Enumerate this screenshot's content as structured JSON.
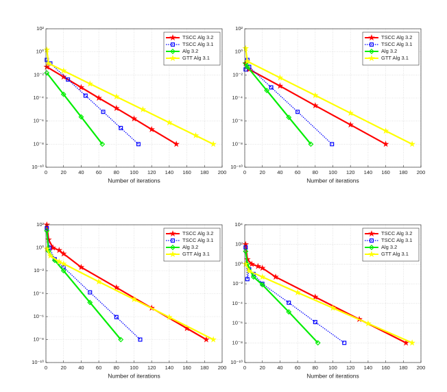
{
  "chart_data": [
    {
      "type": "line",
      "xlabel": "Number of iterations",
      "log_y": true,
      "grid": true,
      "legend": "upper right",
      "xlim": [
        0,
        200
      ],
      "xticks": [
        0,
        20,
        40,
        60,
        80,
        100,
        120,
        140,
        160,
        180,
        200
      ],
      "ylim": [
        1e-10,
        100
      ],
      "yticks": [
        {
          "value": 1e-10,
          "label": "10⁻¹⁰"
        },
        {
          "value": 1e-08,
          "label": "10⁻⁸"
        },
        {
          "value": 1e-06,
          "label": "10⁻⁶"
        },
        {
          "value": 0.0001,
          "label": "10⁻⁴"
        },
        {
          "value": 0.01,
          "label": "10⁻²"
        },
        {
          "value": 1,
          "label": "10⁰"
        },
        {
          "value": 100,
          "label": "10²"
        }
      ],
      "series": [
        {
          "name": "TSCC Alg 3.2",
          "color": "#ff0000",
          "marker": "star",
          "linestyle": "solid",
          "x": [
            1,
            20,
            40,
            60,
            80,
            100,
            120,
            148
          ],
          "values": [
            0.05,
            0.0068,
            0.00083,
            0.0001,
            1.3e-05,
            1.6e-06,
            1.9e-07,
            1e-08
          ]
        },
        {
          "name": "TSCC Alg 3.1",
          "color": "#0000ff",
          "marker": "square",
          "linestyle": "dotted",
          "x": [
            1,
            5,
            25,
            45,
            65,
            85,
            105
          ],
          "values": [
            0.2,
            0.1,
            0.004,
            0.00016,
            6.3e-06,
            2.5e-07,
            1e-08
          ]
        },
        {
          "name": "Alg 3.2",
          "color": "#00ee00",
          "marker": "diamond",
          "linestyle": "solid",
          "x": [
            1,
            20,
            40,
            64
          ],
          "values": [
            0.015,
            0.00021,
            2.3e-06,
            1e-08
          ]
        },
        {
          "name": "GTT Alg 3.1",
          "color": "#ffff00",
          "marker": "star",
          "linestyle": "solid",
          "x": [
            1,
            3,
            20,
            50,
            80,
            110,
            140,
            170,
            190
          ],
          "values": [
            1.5,
            0.1,
            0.023,
            0.0017,
            0.00013,
            1e-05,
            7.4e-07,
            5.6e-08,
            1e-08
          ]
        }
      ]
    },
    {
      "type": "line",
      "xlabel": "Number of iterations",
      "log_y": true,
      "grid": true,
      "legend": "upper right",
      "xlim": [
        0,
        200
      ],
      "xticks": [
        0,
        20,
        40,
        60,
        80,
        100,
        120,
        140,
        160,
        180,
        200
      ],
      "ylim": [
        1e-10,
        100
      ],
      "yticks": [
        {
          "value": 1e-10,
          "label": "10⁻¹⁰"
        },
        {
          "value": 1e-08,
          "label": "10⁻⁸"
        },
        {
          "value": 1e-06,
          "label": "10⁻⁶"
        },
        {
          "value": 0.0001,
          "label": "10⁻⁴"
        },
        {
          "value": 0.01,
          "label": "10⁻²"
        },
        {
          "value": 1,
          "label": "10⁰"
        },
        {
          "value": 100,
          "label": "10²"
        }
      ],
      "series": [
        {
          "name": "TSCC Alg 3.2",
          "color": "#ff0000",
          "marker": "star",
          "linestyle": "solid",
          "x": [
            1,
            5,
            40,
            80,
            120,
            160
          ],
          "values": [
            0.1,
            0.03,
            0.0011,
            2.2e-05,
            4.8e-07,
            1e-08
          ]
        },
        {
          "name": "TSCC Alg 3.1",
          "color": "#0000ff",
          "marker": "square",
          "linestyle": "dotted",
          "x": [
            1,
            3,
            5,
            30,
            60,
            99
          ],
          "values": [
            0.03,
            0.2,
            0.05,
            0.00083,
            6.3e-06,
            1e-08
          ]
        },
        {
          "name": "Alg 3.2",
          "color": "#00ee00",
          "marker": "diamond",
          "linestyle": "solid",
          "x": [
            1,
            3,
            25,
            50,
            75
          ],
          "values": [
            0.1,
            0.05,
            0.00045,
            2.1e-06,
            1e-08
          ]
        },
        {
          "name": "GTT Alg 3.1",
          "color": "#ffff00",
          "marker": "star",
          "linestyle": "solid",
          "x": [
            1,
            3,
            40,
            80,
            120,
            160,
            190
          ],
          "values": [
            2,
            0.15,
            0.0057,
            0.00017,
            4.9e-06,
            1.4e-07,
            1e-08
          ]
        }
      ]
    },
    {
      "type": "line",
      "xlabel": "Number of iterations",
      "log_y": true,
      "grid": true,
      "legend": "upper right",
      "xlim": [
        0,
        200
      ],
      "xticks": [
        0,
        20,
        40,
        60,
        80,
        100,
        120,
        140,
        160,
        180,
        200
      ],
      "ylim": [
        1e-10,
        100
      ],
      "yticks": [
        {
          "value": 1e-10,
          "label": "10⁻¹⁰"
        },
        {
          "value": 1e-08,
          "label": "10⁻⁸"
        },
        {
          "value": 1e-06,
          "label": "10⁻⁶"
        },
        {
          "value": 0.0001,
          "label": "10⁻⁴"
        },
        {
          "value": 0.01,
          "label": "10⁻²"
        },
        {
          "value": 1,
          "label": "10⁰"
        },
        {
          "value": 100,
          "label": "10²"
        }
      ],
      "series": [
        {
          "name": "TSCC Alg 3.2",
          "color": "#ff0000",
          "marker": "star",
          "linestyle": "solid",
          "x": [
            1,
            3,
            8,
            15,
            20,
            40,
            80,
            120,
            160,
            182
          ],
          "values": [
            100,
            5,
            1,
            0.6,
            0.3,
            0.02,
            0.00034,
            5.6e-06,
            9.5e-08,
            1e-08
          ]
        },
        {
          "name": "TSCC Alg 3.1",
          "color": "#0000ff",
          "marker": "square",
          "linestyle": "dotted",
          "x": [
            1,
            4,
            10,
            20,
            50,
            80,
            107
          ],
          "values": [
            50,
            1,
            0.1,
            0.02,
            0.00013,
            9.1e-07,
            1e-08
          ]
        },
        {
          "name": "Alg 3.2",
          "color": "#00ee00",
          "marker": "diamond",
          "linestyle": "solid",
          "x": [
            1,
            3,
            10,
            20,
            50,
            85
          ],
          "values": [
            30,
            0.5,
            0.08,
            0.01,
            1.7e-05,
            1e-08
          ]
        },
        {
          "name": "GTT Alg 3.1",
          "color": "#ffff00",
          "marker": "star",
          "linestyle": "solid",
          "x": [
            1,
            5,
            15,
            20,
            60,
            100,
            140,
            190
          ],
          "values": [
            0.8,
            0.2,
            0.06,
            0.04,
            0.0011,
            3.2e-05,
            8.9e-07,
            1e-08
          ]
        }
      ]
    },
    {
      "type": "line",
      "xlabel": "Number of iterations",
      "log_y": true,
      "grid": true,
      "legend": "upper right",
      "xlim": [
        0,
        200
      ],
      "xticks": [
        0,
        20,
        40,
        60,
        80,
        100,
        120,
        140,
        160,
        180,
        200
      ],
      "ylim": [
        1e-10,
        10000
      ],
      "yticks": [
        {
          "value": 1e-10,
          "label": "10⁻¹⁰"
        },
        {
          "value": 1e-08,
          "label": "10⁻⁸"
        },
        {
          "value": 1e-06,
          "label": "10⁻⁶"
        },
        {
          "value": 0.0001,
          "label": "10⁻⁴"
        },
        {
          "value": 0.01,
          "label": "10⁻²"
        },
        {
          "value": 1,
          "label": "10⁰"
        },
        {
          "value": 100,
          "label": "10²"
        },
        {
          "value": 10000,
          "label": "10⁴"
        }
      ],
      "series": [
        {
          "name": "TSCC Alg 3.2",
          "color": "#ff0000",
          "marker": "star",
          "linestyle": "solid",
          "x": [
            1,
            3,
            8,
            15,
            20,
            35,
            80,
            130,
            183
          ],
          "values": [
            100,
            3,
            1,
            0.6,
            0.4,
            0.05,
            0.00046,
            2.5e-06,
            1e-08
          ]
        },
        {
          "name": "TSCC Alg 3.1",
          "color": "#0000ff",
          "marker": "square",
          "linestyle": "dotted",
          "x": [
            1,
            3,
            5,
            10,
            20,
            50,
            80,
            113
          ],
          "values": [
            50,
            0.03,
            0.3,
            0.1,
            0.01,
            0.00012,
            1.3e-06,
            1e-08
          ]
        },
        {
          "name": "Alg 3.2",
          "color": "#00ee00",
          "marker": "diamond",
          "linestyle": "solid",
          "x": [
            1,
            3,
            10,
            20,
            50,
            83
          ],
          "values": [
            20,
            1,
            0.05,
            0.008,
            1.4e-05,
            1e-08
          ]
        },
        {
          "name": "GTT Alg 3.1",
          "color": "#ffff00",
          "marker": "star",
          "linestyle": "solid",
          "x": [
            1,
            5,
            20,
            60,
            100,
            140,
            190
          ],
          "values": [
            1,
            0.2,
            0.05,
            0.0013,
            3.5e-05,
            9.3e-07,
            1e-08
          ]
        }
      ]
    }
  ]
}
